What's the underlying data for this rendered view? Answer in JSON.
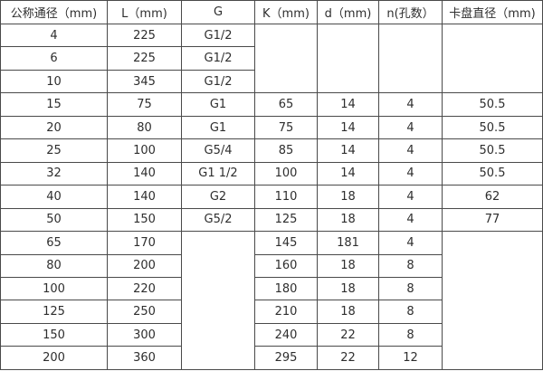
{
  "table": {
    "title": "dimension-spec-table",
    "columns": [
      "公称通径（mm)",
      "L（mm)",
      "G",
      "K（mm)",
      "d（mm)",
      "n(孔数）",
      "卡盘直径（mm)"
    ],
    "rows": [
      [
        "4",
        "225",
        "G1/2",
        {
          "text": "",
          "rowspan": 3
        },
        {
          "text": "",
          "rowspan": 3
        },
        {
          "text": "",
          "rowspan": 3
        },
        {
          "text": "",
          "rowspan": 3
        }
      ],
      [
        "6",
        "225",
        "G1/2"
      ],
      [
        "10",
        "345",
        "G1/2"
      ],
      [
        "15",
        "75",
        "G1",
        "65",
        "14",
        "4",
        "50.5"
      ],
      [
        "20",
        "80",
        "G1",
        "75",
        "14",
        "4",
        "50.5"
      ],
      [
        "25",
        "100",
        "G5/4",
        "85",
        "14",
        "4",
        "50.5"
      ],
      [
        "32",
        "140",
        "G1 1/2",
        "100",
        "14",
        "4",
        "50.5"
      ],
      [
        "40",
        "140",
        "G2",
        "110",
        "18",
        "4",
        "62"
      ],
      [
        "50",
        "150",
        "G5/2",
        "125",
        "18",
        "4",
        "77"
      ],
      [
        "65",
        "170",
        {
          "text": "",
          "rowspan": 6
        },
        "145",
        "181",
        "4",
        {
          "text": "",
          "rowspan": 6
        }
      ],
      [
        "80",
        "200",
        "160",
        "18",
        "8"
      ],
      [
        "100",
        "220",
        "180",
        "18",
        "8"
      ],
      [
        "125",
        "250",
        "210",
        "18",
        "8"
      ],
      [
        "150",
        "300",
        "240",
        "22",
        "8"
      ],
      [
        "200",
        "360",
        "295",
        "22",
        "12"
      ]
    ]
  },
  "colors": {
    "border": "#4a4a4a",
    "text": "#2e2e2e",
    "background": "#ffffff"
  }
}
